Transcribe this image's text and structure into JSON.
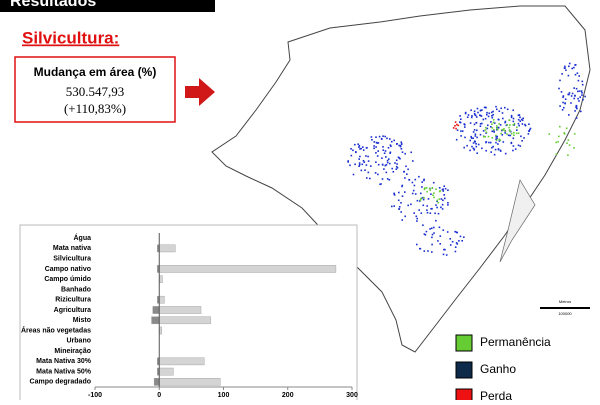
{
  "header": {
    "title": "Resultados"
  },
  "section_title": "Silvicultura:",
  "info_box": {
    "heading": "Mudança em área (%)",
    "value": "530.547,93",
    "change": "(+110,83%)"
  },
  "map_scale": {
    "unit": "Metros",
    "length": "100000"
  },
  "map_legend": [
    {
      "label": "Permanência",
      "color": "#66cc33"
    },
    {
      "label": "Ganho",
      "color": "#0d2a4a"
    },
    {
      "label": "Perda",
      "color": "#ee1111"
    }
  ],
  "chart_data": {
    "type": "hbar",
    "categories": [
      "Água",
      "Mata nativa",
      "Silvicultura",
      "Campo nativo",
      "Campo úmido",
      "Banhado",
      "Rizicultura",
      "Agricultura",
      "Misto",
      "Áreas não vegetadas",
      "Urbano",
      "Mineiração",
      "Mata Nativa 30%",
      "Mata Nativa 50%",
      "Campo degradado"
    ],
    "series": [
      {
        "color": "#d4d4d4",
        "values": [
          0,
          25,
          0,
          275,
          5,
          0,
          8,
          65,
          80,
          4,
          0,
          0,
          70,
          22,
          95
        ]
      },
      {
        "color": "#8a8a8a",
        "values": [
          0,
          -3,
          0,
          -3,
          0,
          0,
          -3,
          -10,
          -12,
          0,
          0,
          0,
          -3,
          -3,
          -8
        ]
      }
    ],
    "xlim": [
      -100,
      300
    ],
    "xticks": [
      -100,
      0,
      100,
      200,
      300
    ]
  }
}
